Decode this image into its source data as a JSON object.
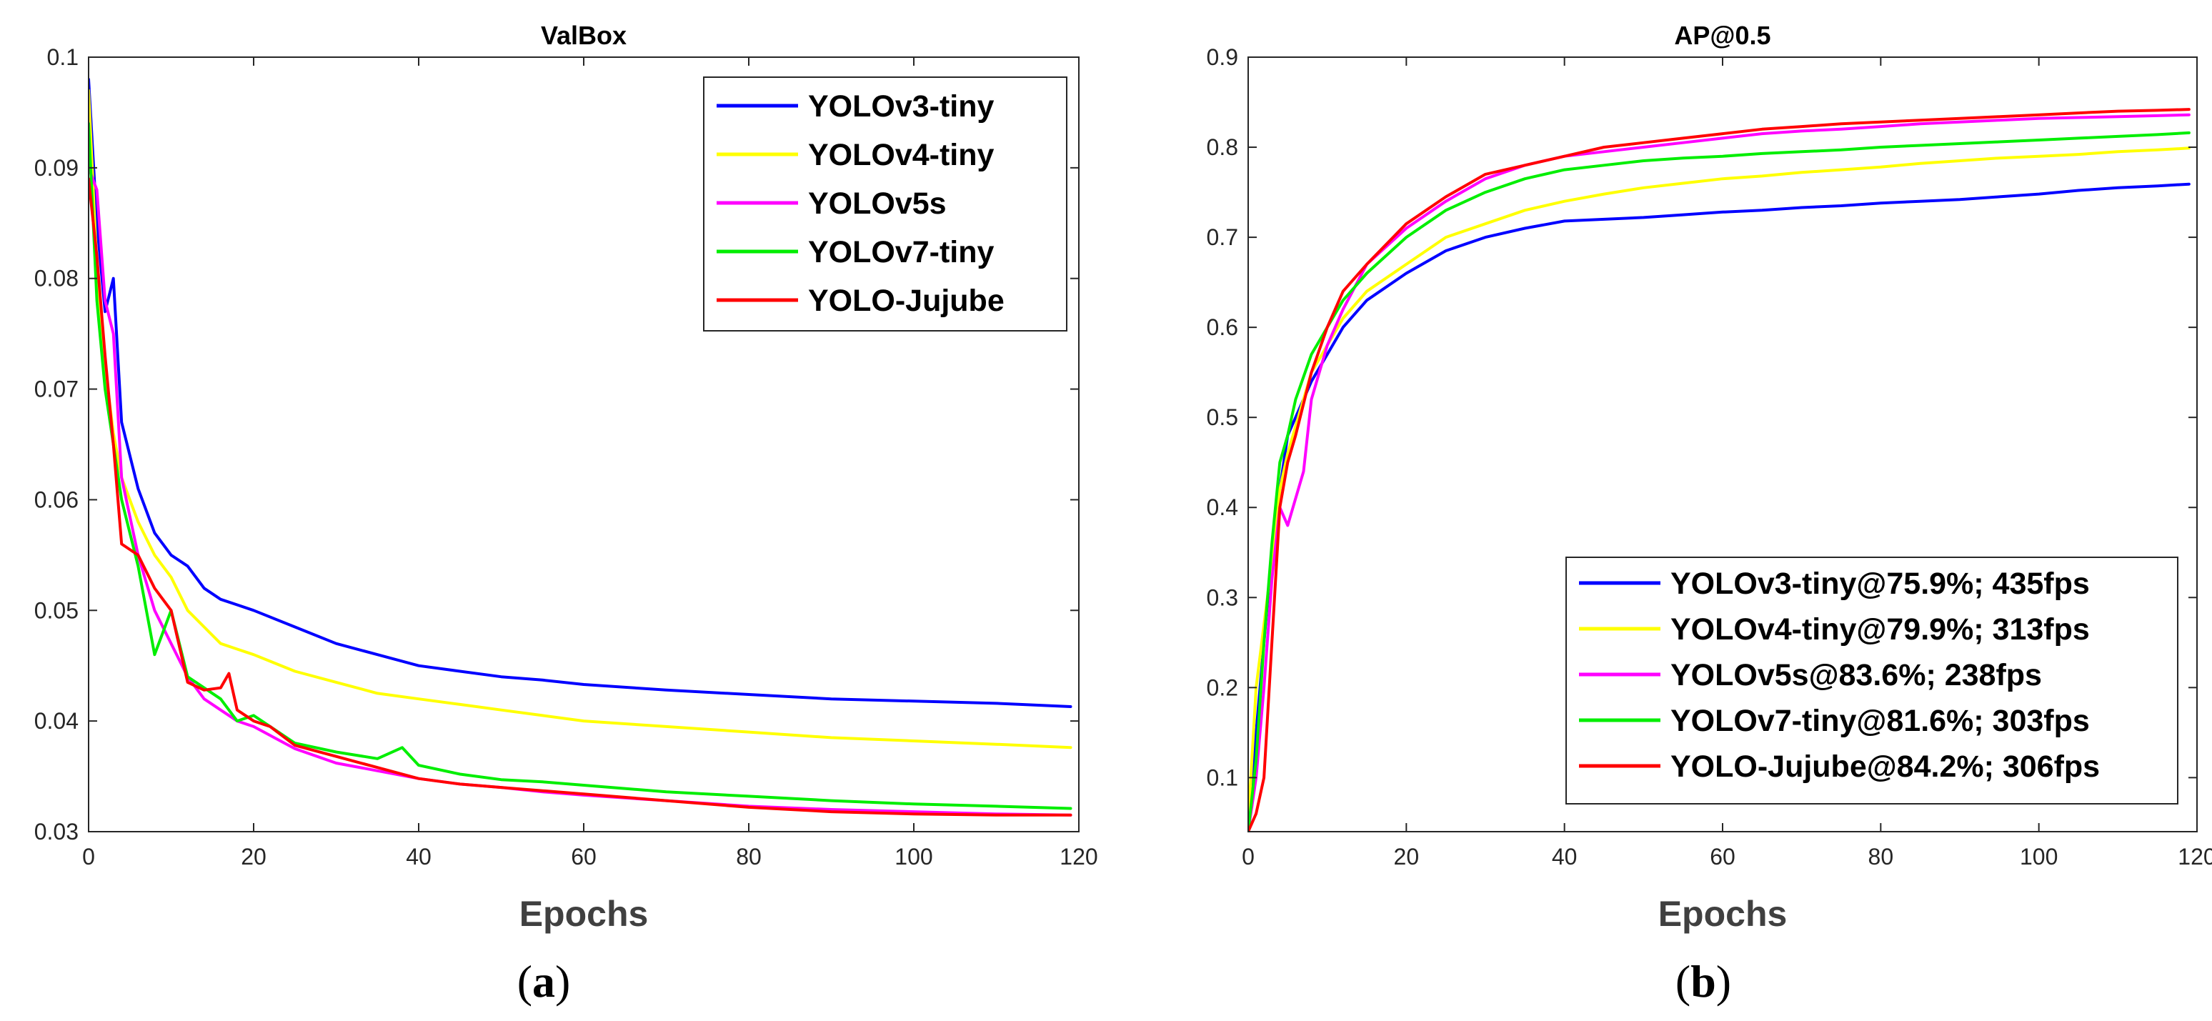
{
  "chart_data": [
    {
      "type": "line",
      "panel_label": "a",
      "title": "ValBox",
      "xlabel": "Epochs",
      "ylabel": "",
      "xlim": [
        0,
        120
      ],
      "ylim": [
        0.03,
        0.1
      ],
      "xticks": [
        "0",
        "20",
        "40",
        "60",
        "80",
        "100",
        "120"
      ],
      "yticks": [
        "0.03",
        "0.04",
        "0.05",
        "0.06",
        "0.07",
        "0.08",
        "0.09",
        "0.1"
      ],
      "grid": false,
      "legend_position": "top-right",
      "series": [
        {
          "name": "YOLOv3-tiny",
          "color": "#0000ff",
          "x": [
            0,
            1,
            2,
            3,
            4,
            6,
            8,
            10,
            12,
            14,
            16,
            18,
            20,
            25,
            30,
            35,
            40,
            45,
            50,
            55,
            60,
            70,
            80,
            90,
            100,
            110,
            119
          ],
          "y": [
            0.098,
            0.085,
            0.077,
            0.08,
            0.067,
            0.061,
            0.057,
            0.055,
            0.054,
            0.052,
            0.051,
            0.0505,
            0.05,
            0.0485,
            0.047,
            0.046,
            0.045,
            0.0445,
            0.044,
            0.0437,
            0.0433,
            0.0428,
            0.0424,
            0.042,
            0.0418,
            0.0416,
            0.0413
          ]
        },
        {
          "name": "YOLOv4-tiny",
          "color": "#ffff00",
          "x": [
            0,
            1,
            2,
            3,
            4,
            6,
            8,
            10,
            12,
            14,
            16,
            18,
            20,
            25,
            30,
            35,
            40,
            45,
            50,
            55,
            60,
            70,
            80,
            90,
            100,
            110,
            119
          ],
          "y": [
            0.097,
            0.081,
            0.072,
            0.066,
            0.062,
            0.058,
            0.055,
            0.053,
            0.05,
            0.0485,
            0.047,
            0.0465,
            0.046,
            0.0445,
            0.0435,
            0.0425,
            0.042,
            0.0415,
            0.041,
            0.0405,
            0.04,
            0.0395,
            0.039,
            0.0385,
            0.0382,
            0.0379,
            0.0376
          ]
        },
        {
          "name": "YOLOv5s",
          "color": "#ff00ff",
          "x": [
            0,
            1,
            2,
            3,
            4,
            6,
            8,
            10,
            12,
            14,
            16,
            18,
            20,
            25,
            30,
            35,
            40,
            45,
            50,
            55,
            60,
            70,
            80,
            90,
            100,
            110,
            119
          ],
          "y": [
            0.09,
            0.088,
            0.078,
            0.075,
            0.062,
            0.055,
            0.05,
            0.047,
            0.044,
            0.042,
            0.041,
            0.04,
            0.0395,
            0.0375,
            0.0362,
            0.0355,
            0.0348,
            0.0343,
            0.034,
            0.0336,
            0.0333,
            0.0328,
            0.0323,
            0.032,
            0.0318,
            0.0316,
            0.0315
          ]
        },
        {
          "name": "YOLOv7-tiny",
          "color": "#00ee00",
          "x": [
            0,
            1,
            2,
            3,
            4,
            6,
            8,
            10,
            12,
            14,
            16,
            18,
            20,
            25,
            30,
            35,
            38,
            40,
            45,
            50,
            55,
            60,
            70,
            80,
            90,
            100,
            110,
            119
          ],
          "y": [
            0.094,
            0.078,
            0.07,
            0.065,
            0.06,
            0.054,
            0.046,
            0.05,
            0.044,
            0.043,
            0.042,
            0.04,
            0.0405,
            0.038,
            0.0372,
            0.0366,
            0.0376,
            0.036,
            0.0352,
            0.0347,
            0.0345,
            0.0342,
            0.0336,
            0.0332,
            0.0328,
            0.0325,
            0.0323,
            0.0321
          ]
        },
        {
          "name": "YOLO-Jujube",
          "color": "#ff0000",
          "x": [
            0,
            1,
            2,
            3,
            4,
            6,
            8,
            10,
            12,
            14,
            16,
            17,
            18,
            20,
            22,
            25,
            30,
            35,
            40,
            45,
            50,
            55,
            60,
            70,
            80,
            90,
            100,
            110,
            119
          ],
          "y": [
            0.089,
            0.082,
            0.073,
            0.065,
            0.056,
            0.055,
            0.052,
            0.05,
            0.0435,
            0.0428,
            0.043,
            0.0443,
            0.041,
            0.04,
            0.0395,
            0.0378,
            0.0368,
            0.0358,
            0.0348,
            0.0343,
            0.034,
            0.0337,
            0.0334,
            0.0328,
            0.0322,
            0.0318,
            0.0316,
            0.0315,
            0.0315
          ]
        }
      ]
    },
    {
      "type": "line",
      "panel_label": "b",
      "title": "AP@0.5",
      "xlabel": "Epochs",
      "ylabel": "",
      "xlim": [
        0,
        120
      ],
      "ylim": [
        0.04,
        0.9
      ],
      "xticks": [
        "0",
        "20",
        "40",
        "60",
        "80",
        "100",
        "120"
      ],
      "yticks": [
        "0.1",
        "0.2",
        "0.3",
        "0.4",
        "0.5",
        "0.6",
        "0.7",
        "0.8",
        "0.9"
      ],
      "grid": false,
      "legend_position": "bottom-right",
      "series": [
        {
          "name": "YOLOv3-tiny@75.9%; 435fps",
          "color": "#0000ff",
          "x": [
            0,
            1,
            2,
            3,
            4,
            5,
            6,
            8,
            10,
            12,
            15,
            20,
            25,
            30,
            35,
            40,
            45,
            50,
            55,
            60,
            65,
            70,
            75,
            80,
            85,
            90,
            95,
            100,
            105,
            110,
            115,
            119
          ],
          "y": [
            0.04,
            0.15,
            0.25,
            0.35,
            0.42,
            0.48,
            0.5,
            0.54,
            0.57,
            0.6,
            0.63,
            0.66,
            0.685,
            0.7,
            0.71,
            0.718,
            0.72,
            0.722,
            0.725,
            0.728,
            0.73,
            0.733,
            0.735,
            0.738,
            0.74,
            0.742,
            0.745,
            0.748,
            0.752,
            0.755,
            0.757,
            0.759
          ]
        },
        {
          "name": "YOLOv4-tiny@79.9%; 313fps",
          "color": "#ffff00",
          "x": [
            0,
            1,
            2,
            3,
            4,
            5,
            6,
            8,
            10,
            12,
            15,
            20,
            25,
            30,
            35,
            40,
            45,
            50,
            55,
            60,
            65,
            70,
            75,
            80,
            85,
            90,
            95,
            100,
            105,
            110,
            115,
            119
          ],
          "y": [
            0.05,
            0.2,
            0.27,
            0.34,
            0.42,
            0.46,
            0.49,
            0.55,
            0.58,
            0.61,
            0.64,
            0.67,
            0.7,
            0.715,
            0.73,
            0.74,
            0.748,
            0.755,
            0.76,
            0.765,
            0.768,
            0.772,
            0.775,
            0.778,
            0.782,
            0.785,
            0.788,
            0.79,
            0.792,
            0.795,
            0.797,
            0.799
          ]
        },
        {
          "name": "YOLOv5s@83.6%; 238fps",
          "color": "#ff00ff",
          "x": [
            0,
            1,
            2,
            3,
            4,
            5,
            6,
            7,
            8,
            10,
            12,
            15,
            20,
            25,
            30,
            35,
            40,
            45,
            50,
            55,
            60,
            65,
            70,
            75,
            80,
            85,
            90,
            95,
            100,
            105,
            110,
            115,
            119
          ],
          "y": [
            0.04,
            0.1,
            0.2,
            0.32,
            0.4,
            0.38,
            0.41,
            0.44,
            0.52,
            0.58,
            0.62,
            0.67,
            0.71,
            0.74,
            0.765,
            0.78,
            0.79,
            0.795,
            0.8,
            0.805,
            0.81,
            0.815,
            0.818,
            0.82,
            0.823,
            0.826,
            0.828,
            0.83,
            0.832,
            0.833,
            0.834,
            0.835,
            0.836
          ]
        },
        {
          "name": "YOLOv7-tiny@81.6%; 303fps",
          "color": "#00ee00",
          "x": [
            0,
            1,
            2,
            3,
            4,
            5,
            6,
            8,
            10,
            12,
            15,
            20,
            25,
            30,
            35,
            40,
            45,
            50,
            55,
            60,
            65,
            70,
            75,
            80,
            85,
            90,
            95,
            100,
            105,
            110,
            115,
            119
          ],
          "y": [
            0.04,
            0.12,
            0.25,
            0.36,
            0.45,
            0.48,
            0.52,
            0.57,
            0.6,
            0.63,
            0.66,
            0.7,
            0.73,
            0.75,
            0.765,
            0.775,
            0.78,
            0.785,
            0.788,
            0.79,
            0.793,
            0.795,
            0.797,
            0.8,
            0.802,
            0.804,
            0.806,
            0.808,
            0.81,
            0.812,
            0.814,
            0.816
          ]
        },
        {
          "name": "YOLO-Jujube@84.2%; 306fps",
          "color": "#ff0000",
          "x": [
            0,
            1,
            2,
            3,
            4,
            5,
            6,
            8,
            10,
            12,
            15,
            20,
            25,
            30,
            35,
            40,
            45,
            50,
            55,
            60,
            65,
            70,
            75,
            80,
            85,
            90,
            95,
            100,
            105,
            110,
            115,
            119
          ],
          "y": [
            0.04,
            0.06,
            0.1,
            0.25,
            0.4,
            0.45,
            0.48,
            0.55,
            0.6,
            0.64,
            0.67,
            0.715,
            0.745,
            0.77,
            0.78,
            0.79,
            0.8,
            0.805,
            0.81,
            0.815,
            0.82,
            0.823,
            0.826,
            0.828,
            0.83,
            0.832,
            0.834,
            0.836,
            0.838,
            0.84,
            0.841,
            0.842
          ]
        }
      ]
    }
  ],
  "captions": {
    "a": "a",
    "b": "b",
    "open": "(",
    "close": ")"
  }
}
